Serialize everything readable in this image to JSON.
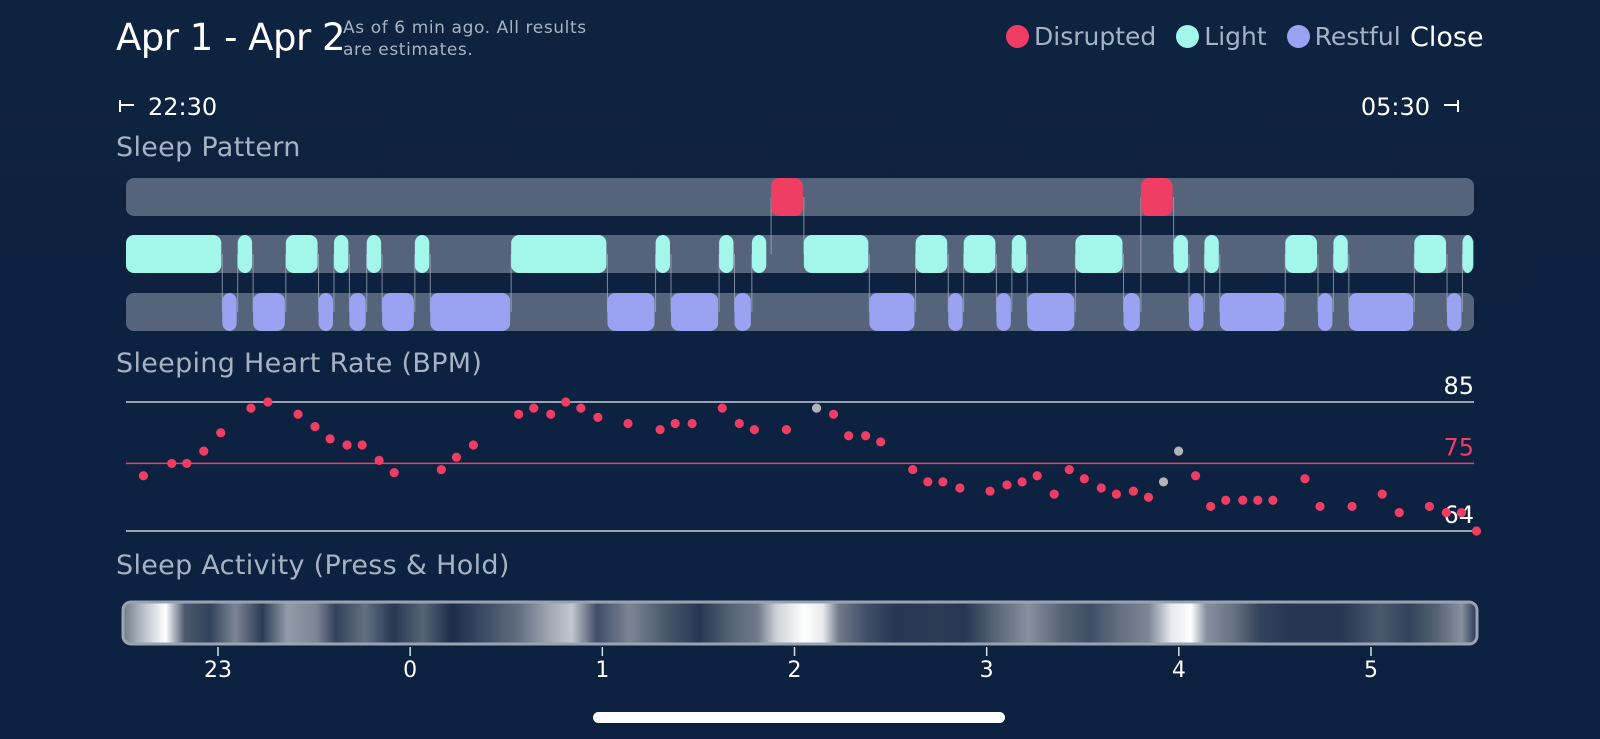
{
  "header": {
    "title": "Apr 1 - Apr 2",
    "subtitle": "As of 6 min ago. All results are estimates.",
    "close_label": "Close"
  },
  "legend": {
    "disrupted": {
      "label": "Disrupted",
      "color": "#ef3d63"
    },
    "light": {
      "label": "Light",
      "color": "#a2f7ea"
    },
    "restful": {
      "label": "Restful",
      "color": "#9aa3f1"
    }
  },
  "time_range": {
    "start": "22:30",
    "end": "05:30"
  },
  "sections": {
    "sleep_pattern": "Sleep Pattern",
    "heart_rate": "Sleeping Heart Rate (BPM)",
    "activity": "Sleep Activity (Press & Hold)"
  },
  "chart_data": [
    {
      "type": "bar",
      "name": "sleep-pattern",
      "x_unit": "hours since 22:30",
      "xlim": [
        0,
        7.0
      ],
      "rows": [
        "Disrupted",
        "Light",
        "Restful"
      ],
      "colors": {
        "Disrupted": "#ef3d63",
        "Light": "#a2f7ea",
        "Restful": "#9aa3f1"
      },
      "segments": {
        "Disrupted": [
          [
            3.35,
            3.52
          ],
          [
            5.27,
            5.44
          ]
        ],
        "Light": [
          [
            0.0,
            0.5
          ],
          [
            0.58,
            0.66
          ],
          [
            0.83,
            1.0
          ],
          [
            1.08,
            1.16
          ],
          [
            1.25,
            1.33
          ],
          [
            1.5,
            1.58
          ],
          [
            2.0,
            2.5
          ],
          [
            2.75,
            2.83
          ],
          [
            3.08,
            3.16
          ],
          [
            3.25,
            3.33
          ],
          [
            3.52,
            3.86
          ],
          [
            4.1,
            4.27
          ],
          [
            4.35,
            4.52
          ],
          [
            4.6,
            4.68
          ],
          [
            4.93,
            5.18
          ],
          [
            5.44,
            5.52
          ],
          [
            5.6,
            5.68
          ],
          [
            6.02,
            6.19
          ],
          [
            6.27,
            6.35
          ],
          [
            6.69,
            6.86
          ],
          [
            6.94,
            7.0
          ]
        ],
        "Restful": [
          [
            0.5,
            0.58
          ],
          [
            0.66,
            0.83
          ],
          [
            1.0,
            1.08
          ],
          [
            1.16,
            1.25
          ],
          [
            1.33,
            1.5
          ],
          [
            1.58,
            2.0
          ],
          [
            2.5,
            2.75
          ],
          [
            2.83,
            3.08
          ],
          [
            3.16,
            3.25
          ],
          [
            3.86,
            4.1
          ],
          [
            4.27,
            4.35
          ],
          [
            4.52,
            4.6
          ],
          [
            4.68,
            4.93
          ],
          [
            5.18,
            5.27
          ],
          [
            5.52,
            5.6
          ],
          [
            5.68,
            6.02
          ],
          [
            6.19,
            6.27
          ],
          [
            6.35,
            6.69
          ],
          [
            6.86,
            6.94
          ]
        ]
      }
    },
    {
      "type": "scatter",
      "name": "sleeping-heart-rate",
      "title": "Sleeping Heart Rate (BPM)",
      "ylim": [
        64,
        85
      ],
      "reference_lines": [
        {
          "value": 85,
          "label": "85",
          "color": "#c6cdd8"
        },
        {
          "value": 75,
          "label": "75",
          "color": "#ef3d63"
        },
        {
          "value": 64,
          "label": "64",
          "color": "#c6cdd8"
        }
      ],
      "x_unit": "hours since 22:30",
      "xlim": [
        0,
        7.0
      ],
      "point_color": "#ef3d63",
      "outlier_color": "#b0b3ba",
      "points": [
        [
          0.05,
          73
        ],
        [
          0.2,
          75
        ],
        [
          0.28,
          75
        ],
        [
          0.37,
          77
        ],
        [
          0.46,
          80
        ],
        [
          0.62,
          84
        ],
        [
          0.71,
          85
        ],
        [
          0.87,
          83
        ],
        [
          0.96,
          81
        ],
        [
          1.04,
          79
        ],
        [
          1.13,
          78
        ],
        [
          1.21,
          78
        ],
        [
          1.3,
          75.5
        ],
        [
          1.38,
          73.5
        ],
        [
          1.63,
          74
        ],
        [
          1.71,
          76
        ],
        [
          1.8,
          78
        ],
        [
          2.04,
          83
        ],
        [
          2.12,
          84
        ],
        [
          2.21,
          83
        ],
        [
          2.29,
          85
        ],
        [
          2.37,
          84
        ],
        [
          2.46,
          82.5
        ],
        [
          2.62,
          81.5
        ],
        [
          2.79,
          80.5
        ],
        [
          2.87,
          81.5
        ],
        [
          2.96,
          81.5
        ],
        [
          3.12,
          84
        ],
        [
          3.21,
          81.5
        ],
        [
          3.29,
          80.5
        ],
        [
          3.46,
          80.5
        ],
        [
          3.62,
          84,
          "o"
        ],
        [
          3.71,
          83
        ],
        [
          3.79,
          79.5
        ],
        [
          3.88,
          79.5
        ],
        [
          3.96,
          78.5
        ],
        [
          4.13,
          74
        ],
        [
          4.21,
          72
        ],
        [
          4.29,
          72
        ],
        [
          4.38,
          71
        ],
        [
          4.54,
          70.5
        ],
        [
          4.63,
          71.5
        ],
        [
          4.71,
          72
        ],
        [
          4.79,
          73
        ],
        [
          4.88,
          70
        ],
        [
          4.96,
          74
        ],
        [
          5.04,
          72.5
        ],
        [
          5.13,
          71
        ],
        [
          5.21,
          70
        ],
        [
          5.3,
          70.5
        ],
        [
          5.38,
          69.5
        ],
        [
          5.46,
          72,
          "o"
        ],
        [
          5.54,
          77,
          "o"
        ],
        [
          5.63,
          73
        ],
        [
          5.71,
          68
        ],
        [
          5.79,
          69
        ],
        [
          5.88,
          69
        ],
        [
          5.96,
          69
        ],
        [
          6.04,
          69
        ],
        [
          6.21,
          72.5
        ],
        [
          6.29,
          68
        ],
        [
          6.46,
          68
        ],
        [
          6.62,
          70
        ],
        [
          6.71,
          67
        ],
        [
          6.87,
          68
        ],
        [
          6.96,
          67
        ],
        [
          7.04,
          67
        ],
        [
          7.12,
          64
        ]
      ]
    },
    {
      "type": "heatmap",
      "name": "sleep-activity",
      "title": "Sleep Activity (Press & Hold)",
      "x_unit": "hours since 22:30",
      "xlim": [
        0,
        7.0
      ],
      "x_ticks": [
        {
          "label": "23",
          "value": 0.5
        },
        {
          "label": "0",
          "value": 1.5
        },
        {
          "label": "1",
          "value": 2.5
        },
        {
          "label": "2",
          "value": 3.5
        },
        {
          "label": "3",
          "value": 4.5
        },
        {
          "label": "4",
          "value": 5.5
        },
        {
          "label": "5",
          "value": 6.5
        }
      ],
      "intensity": [
        [
          0.0,
          0.4
        ],
        [
          0.12,
          0.75
        ],
        [
          0.22,
          1.0
        ],
        [
          0.32,
          0.25
        ],
        [
          0.45,
          0.15
        ],
        [
          0.58,
          0.45
        ],
        [
          0.72,
          0.12
        ],
        [
          0.85,
          0.55
        ],
        [
          1.0,
          0.45
        ],
        [
          1.1,
          0.15
        ],
        [
          1.25,
          0.35
        ],
        [
          1.4,
          0.1
        ],
        [
          1.55,
          0.3
        ],
        [
          1.7,
          0.05
        ],
        [
          2.05,
          0.35
        ],
        [
          2.2,
          0.6
        ],
        [
          2.32,
          0.75
        ],
        [
          2.45,
          0.2
        ],
        [
          2.62,
          0.45
        ],
        [
          2.8,
          0.25
        ],
        [
          2.98,
          0.1
        ],
        [
          3.15,
          0.3
        ],
        [
          3.28,
          0.4
        ],
        [
          3.38,
          0.8
        ],
        [
          3.52,
          1.0
        ],
        [
          3.62,
          0.9
        ],
        [
          3.7,
          0.4
        ],
        [
          3.85,
          0.2
        ],
        [
          4.0,
          0.1
        ],
        [
          4.22,
          0.12
        ],
        [
          4.35,
          0.1
        ],
        [
          4.55,
          0.35
        ],
        [
          4.68,
          0.5
        ],
        [
          4.85,
          0.3
        ],
        [
          5.0,
          0.2
        ],
        [
          5.15,
          0.35
        ],
        [
          5.3,
          0.45
        ],
        [
          5.42,
          0.9
        ],
        [
          5.52,
          1.0
        ],
        [
          5.6,
          0.5
        ],
        [
          5.75,
          0.35
        ],
        [
          5.88,
          0.15
        ],
        [
          6.05,
          0.1
        ],
        [
          6.3,
          0.1
        ],
        [
          6.5,
          0.25
        ],
        [
          6.65,
          0.15
        ],
        [
          6.8,
          0.3
        ],
        [
          6.92,
          0.5
        ],
        [
          7.0,
          0.1
        ]
      ]
    }
  ]
}
